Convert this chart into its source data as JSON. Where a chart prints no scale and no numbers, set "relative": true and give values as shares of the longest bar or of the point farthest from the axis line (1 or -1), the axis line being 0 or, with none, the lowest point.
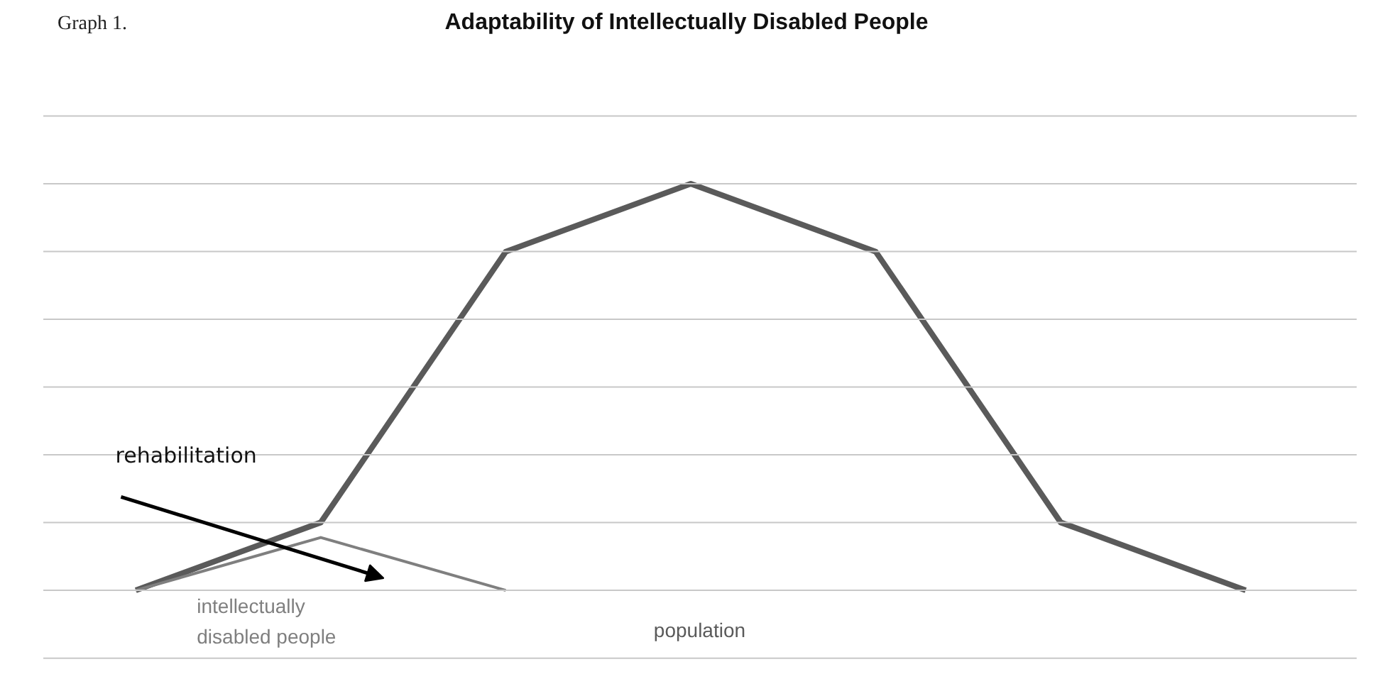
{
  "chart_data": {
    "type": "line",
    "title": "Adaptability of Intellectually Disabled People",
    "relative": true,
    "grid": "y",
    "categories": [
      null,
      null,
      null,
      null,
      null,
      null,
      null
    ],
    "series": [
      {
        "name": "population",
        "color": "#5a5a5a",
        "values": [
          0,
          0.167,
          0.833,
          1,
          0.833,
          0.167,
          0
        ]
      },
      {
        "name": "intellectually disabled people",
        "color": "#7f7f7f",
        "values": [
          0,
          0.13,
          0,
          null,
          null,
          null,
          null
        ]
      }
    ],
    "annotations": [
      "Graph 1.",
      "rehabilitation"
    ]
  }
}
